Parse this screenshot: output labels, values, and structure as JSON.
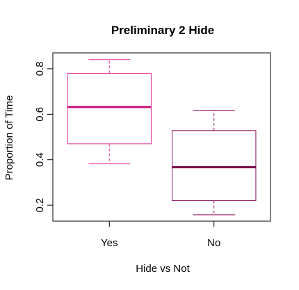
{
  "chart_data": {
    "type": "boxplot",
    "title": "Preliminary 2 Hide",
    "xlabel": "Hide vs Not",
    "ylabel": "Proportion of Time",
    "ylim": [
      0.13,
      0.87
    ],
    "y_ticks": [
      0.2,
      0.4,
      0.6,
      0.8
    ],
    "y_tick_labels": [
      "0.2",
      "0.4",
      "0.6",
      "0.8"
    ],
    "grid": false,
    "categories": [
      "Yes",
      "No"
    ],
    "boxes": [
      {
        "category": "Yes",
        "whisker_low": 0.382,
        "q1": 0.47,
        "median": 0.632,
        "q3": 0.78,
        "whisker_high": 0.84,
        "color": "#e0309a",
        "median_color": "#cc1077"
      },
      {
        "category": "No",
        "whisker_low": 0.158,
        "q1": 0.22,
        "median": 0.367,
        "q3": 0.528,
        "whisker_high": 0.617,
        "color": "#8b0a5a",
        "median_color": "#7a0048"
      }
    ]
  }
}
